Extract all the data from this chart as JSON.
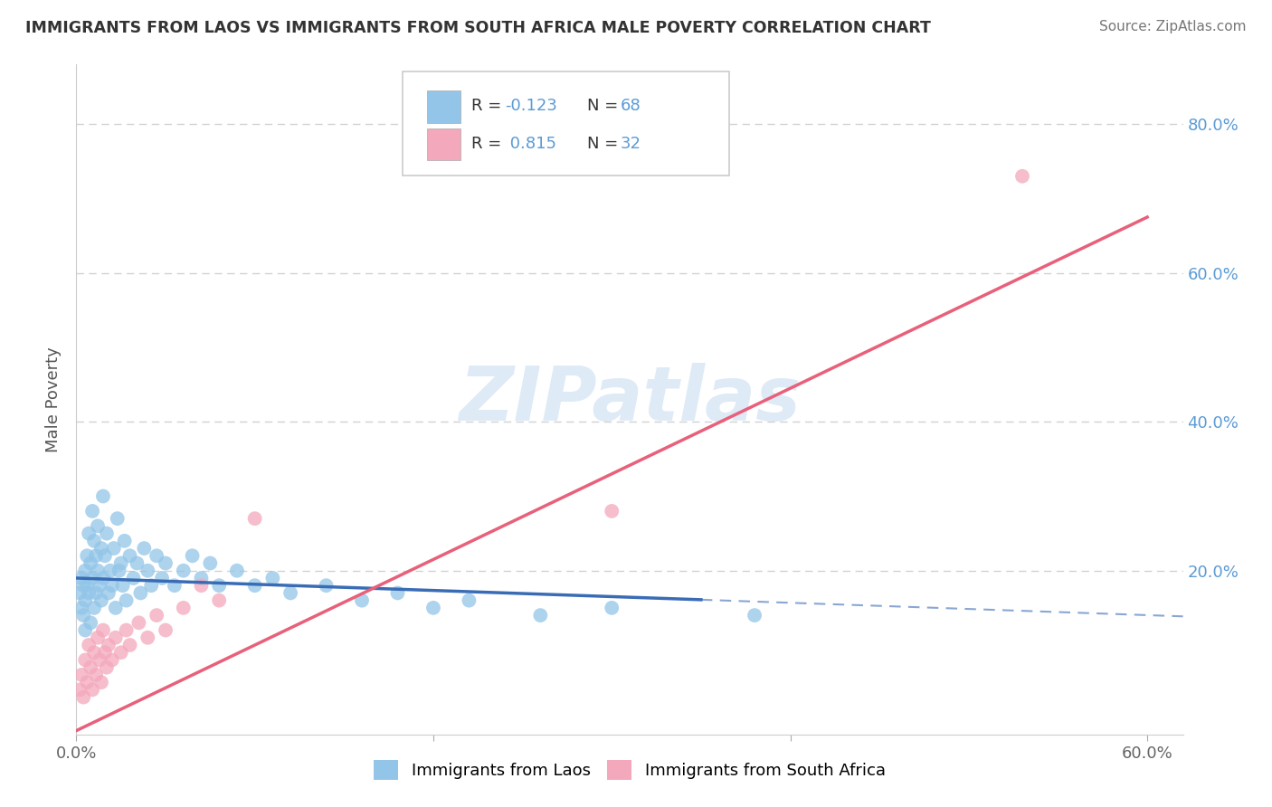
{
  "title": "IMMIGRANTS FROM LAOS VS IMMIGRANTS FROM SOUTH AFRICA MALE POVERTY CORRELATION CHART",
  "source": "Source: ZipAtlas.com",
  "ylabel": "Male Poverty",
  "legend_labels": [
    "Immigrants from Laos",
    "Immigrants from South Africa"
  ],
  "r_laos": -0.123,
  "n_laos": 68,
  "r_sa": 0.815,
  "n_sa": 32,
  "color_laos": "#92C5E8",
  "color_sa": "#F4A8BC",
  "color_laos_line": "#3A6CB5",
  "color_sa_line": "#E8607A",
  "color_grid": "#CCCCCC",
  "xlim": [
    0.0,
    0.62
  ],
  "ylim": [
    -0.02,
    0.88
  ],
  "background_color": "#FFFFFF",
  "watermark_text": "ZIPatlas",
  "watermark_color": "#C8DCF0"
}
